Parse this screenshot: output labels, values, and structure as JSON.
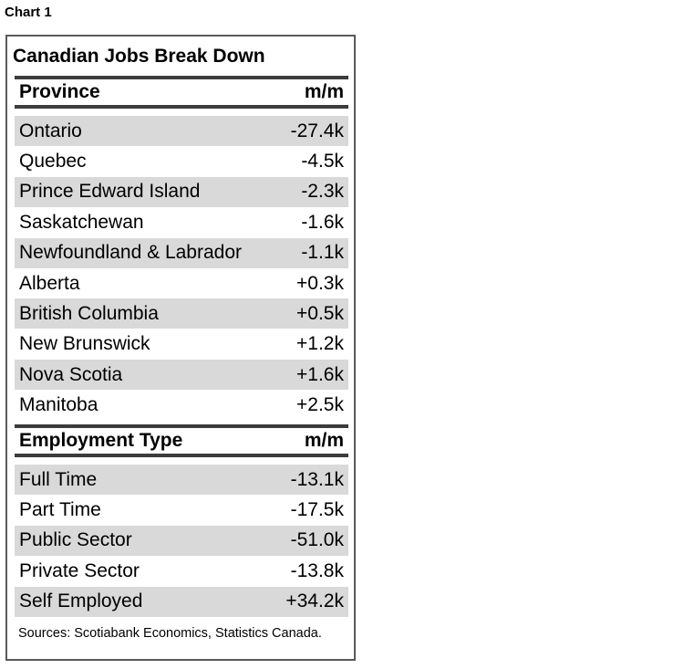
{
  "chart_label": "Chart 1",
  "chart_data": {
    "type": "table",
    "title": "Canadian Jobs Break Down",
    "sections": [
      {
        "header": [
          "Province",
          "m/m"
        ],
        "rows": [
          [
            "Ontario",
            "-27.4k"
          ],
          [
            "Quebec",
            "-4.5k"
          ],
          [
            "Prince Edward Island",
            "-2.3k"
          ],
          [
            "Saskatchewan",
            "-1.6k"
          ],
          [
            "Newfoundland & Labrador",
            "-1.1k"
          ],
          [
            "Alberta",
            "+0.3k"
          ],
          [
            "British Columbia",
            "+0.5k"
          ],
          [
            "New Brunswick",
            "+1.2k"
          ],
          [
            "Nova Scotia",
            "+1.6k"
          ],
          [
            "Manitoba",
            "+2.5k"
          ]
        ]
      },
      {
        "header": [
          "Employment Type",
          "m/m"
        ],
        "rows": [
          [
            "Full Time",
            "-13.1k"
          ],
          [
            "Part Time",
            "-17.5k"
          ],
          [
            "Public Sector",
            "-51.0k"
          ],
          [
            "Private Sector",
            "-13.8k"
          ],
          [
            "Self Employed",
            "+34.2k"
          ]
        ]
      }
    ],
    "row_shading": "#d9d9d9",
    "rule_color": "#3c3c3c"
  },
  "sources": "Sources: Scotiabank Economics, Statistics Canada."
}
